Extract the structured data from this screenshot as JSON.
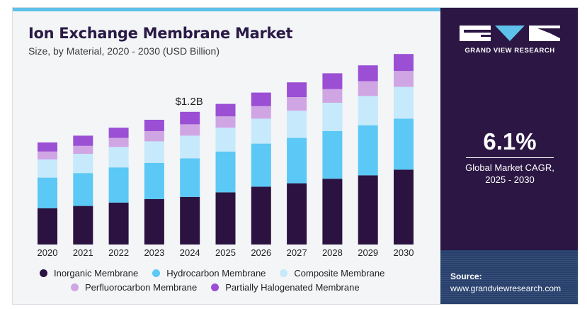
{
  "title": "Ion Exchange Membrane Market",
  "subtitle": "Size, by Material, 2020 - 2030 (USD Billion)",
  "annotation": {
    "text": "$1.2B",
    "category": "2024"
  },
  "chart_data": {
    "type": "bar",
    "stacked": true,
    "title": "Ion Exchange Membrane Market",
    "subtitle": "Size, by Material, 2020 - 2030 (USD Billion)",
    "categories": [
      "2020",
      "2021",
      "2022",
      "2023",
      "2024",
      "2025",
      "2026",
      "2027",
      "2028",
      "2029",
      "2030"
    ],
    "series": [
      {
        "name": "Inorganic Membrane",
        "color": "#2b1240",
        "values": [
          0.32,
          0.34,
          0.37,
          0.4,
          0.42,
          0.46,
          0.51,
          0.54,
          0.58,
          0.61,
          0.66
        ]
      },
      {
        "name": "Hydrocarbon Membrane",
        "color": "#5bc8f5",
        "values": [
          0.27,
          0.29,
          0.31,
          0.32,
          0.34,
          0.36,
          0.38,
          0.4,
          0.42,
          0.44,
          0.45
        ]
      },
      {
        "name": "Composite Membrane",
        "color": "#c6e9fb",
        "values": [
          0.16,
          0.17,
          0.18,
          0.19,
          0.2,
          0.21,
          0.22,
          0.24,
          0.25,
          0.26,
          0.28
        ]
      },
      {
        "name": "Perfluorocarbon Membrane",
        "color": "#cfa6e3",
        "values": [
          0.07,
          0.07,
          0.08,
          0.09,
          0.1,
          0.1,
          0.11,
          0.12,
          0.12,
          0.13,
          0.14
        ]
      },
      {
        "name": "Partially Halogenated Membrane",
        "color": "#9b4fd4",
        "values": [
          0.08,
          0.09,
          0.09,
          0.1,
          0.11,
          0.11,
          0.12,
          0.13,
          0.14,
          0.14,
          0.15
        ]
      }
    ],
    "ylim": [
      0,
      1.8
    ],
    "grid": false,
    "legend_position": "bottom"
  },
  "sidebar": {
    "brand": "GRAND VIEW RESEARCH",
    "cagr_value": "6.1%",
    "cagr_label": "Global Market CAGR,",
    "cagr_period": "2025 - 2030",
    "source_label": "Source:",
    "source_url": "www.grandviewresearch.com",
    "background_color": "#2c1744",
    "accent_color": "#27406c"
  }
}
